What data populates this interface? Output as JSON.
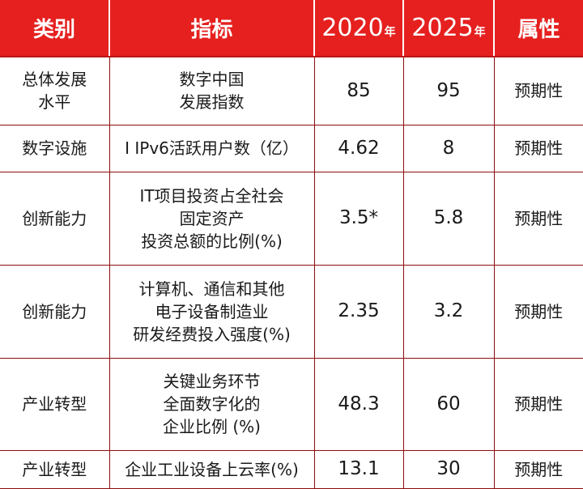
{
  "header": {
    "category": "类别",
    "indicator": "指标",
    "year1": "2020",
    "year1_suffix": "年",
    "year2": "2025",
    "year2_suffix": "年",
    "attribute": "属性"
  },
  "rows": [
    {
      "category_lines": [
        "总体发展",
        "水平"
      ],
      "indicator_lines": [
        "数字中国",
        "发展指数"
      ],
      "v2020": "85",
      "v2025": "95",
      "attribute": "预期性"
    },
    {
      "category_lines": [
        "数字设施"
      ],
      "indicator_lines": [
        "I IPv6活跃用户数（亿）"
      ],
      "v2020": "4.62",
      "v2025": "8",
      "attribute": "预期性"
    },
    {
      "category_lines": [
        "创新能力"
      ],
      "indicator_lines": [
        "IT项目投资占全社会",
        "固定资产",
        "投资总额的比例(%)"
      ],
      "v2020": "3.5*",
      "v2025": "5.8",
      "attribute": "预期性"
    },
    {
      "category_lines": [
        "创新能力"
      ],
      "indicator_lines": [
        "计算机、通信和其他",
        "电子设备制造业",
        "研发经费投入强度(%)"
      ],
      "v2020": "2.35",
      "v2025": "3.2",
      "attribute": "预期性"
    },
    {
      "category_lines": [
        "产业转型"
      ],
      "indicator_lines": [
        "关键业务环节",
        "全面数字化的",
        "企业比例 (%)"
      ],
      "v2020": "48.3",
      "v2025": "60",
      "attribute": "预期性"
    },
    {
      "category_lines": [
        "产业转型"
      ],
      "indicator_lines": [
        "企业工业设备上云率(%)"
      ],
      "v2020": "13.1",
      "v2025": "30",
      "attribute": "预期性"
    }
  ]
}
